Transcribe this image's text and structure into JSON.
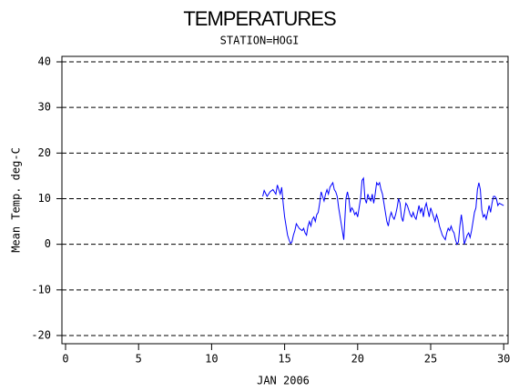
{
  "chart_data": {
    "type": "line",
    "title": "TEMPERATURES",
    "subtitle": "STATION=HOGI",
    "xlabel": "JAN 2006",
    "ylabel": "Mean Temp. deg-C",
    "xlim": [
      -0.25,
      30.3
    ],
    "xticks": [
      0,
      5,
      10,
      15,
      20,
      25,
      30
    ],
    "ylim": [
      -21.8,
      41.2
    ],
    "yticks": [
      -20,
      -10,
      0,
      10,
      20,
      30,
      40
    ],
    "grid": true,
    "color": "#0000ff",
    "x": [
      13.5,
      13.6,
      13.8,
      14.0,
      14.2,
      14.4,
      14.5,
      14.7,
      14.8,
      14.9,
      15.0,
      15.1,
      15.2,
      15.3,
      15.4,
      15.5,
      15.6,
      15.7,
      15.8,
      15.9,
      16.0,
      16.2,
      16.3,
      16.4,
      16.5,
      16.6,
      16.7,
      16.8,
      16.9,
      17.0,
      17.1,
      17.2,
      17.3,
      17.4,
      17.5,
      17.6,
      17.7,
      17.8,
      17.9,
      18.0,
      18.1,
      18.2,
      18.3,
      18.4,
      18.5,
      18.6,
      18.7,
      18.8,
      18.9,
      19.0,
      19.05,
      19.1,
      19.2,
      19.3,
      19.4,
      19.5,
      19.6,
      19.7,
      19.8,
      19.9,
      20.0,
      20.1,
      20.2,
      20.3,
      20.4,
      20.5,
      20.6,
      20.7,
      20.8,
      20.9,
      21.0,
      21.1,
      21.2,
      21.3,
      21.4,
      21.5,
      21.6,
      21.7,
      21.8,
      21.9,
      22.0,
      22.1,
      22.2,
      22.3,
      22.4,
      22.5,
      22.6,
      22.7,
      22.8,
      22.9,
      23.0,
      23.1,
      23.2,
      23.3,
      23.4,
      23.5,
      23.6,
      23.7,
      23.8,
      23.9,
      24.0,
      24.1,
      24.2,
      24.3,
      24.4,
      24.5,
      24.6,
      24.7,
      24.8,
      24.9,
      25.0,
      25.1,
      25.2,
      25.3,
      25.4,
      25.5,
      25.6,
      25.7,
      25.8,
      25.9,
      26.0,
      26.1,
      26.2,
      26.3,
      26.4,
      26.5,
      26.6,
      26.7,
      26.8,
      26.9,
      27.0,
      27.1,
      27.2,
      27.3,
      27.4,
      27.5,
      27.6,
      27.7,
      27.8,
      27.9,
      28.0,
      28.1,
      28.2,
      28.3,
      28.4,
      28.5,
      28.6,
      28.7,
      28.8,
      28.9,
      29.0,
      29.1,
      29.2,
      29.3,
      29.4,
      29.5,
      29.6,
      29.7,
      30.0
    ],
    "values": [
      10.5,
      11.8,
      10.5,
      11.5,
      12,
      11,
      13,
      11,
      12.5,
      9,
      6,
      4,
      2,
      1,
      0.2,
      0.5,
      2,
      3,
      4.5,
      4,
      3.5,
      3,
      3.5,
      2.5,
      2,
      4,
      5,
      4,
      5.5,
      6,
      5,
      6.5,
      7,
      9,
      11.5,
      10.5,
      9.5,
      11,
      12,
      11,
      12.5,
      13,
      13.5,
      12,
      11.5,
      10.5,
      8,
      6,
      4,
      2,
      1,
      4,
      10,
      11.5,
      10,
      7,
      8,
      7.5,
      6.5,
      7,
      6,
      8,
      10,
      14,
      14.5,
      10,
      9,
      11,
      10,
      9.5,
      11,
      9,
      11,
      13.5,
      13,
      13.5,
      12,
      11,
      9,
      7,
      5,
      4,
      6,
      7,
      6,
      5.5,
      6.5,
      8,
      10,
      9,
      6,
      5,
      7,
      9,
      8.5,
      7.5,
      6.5,
      6,
      7,
      6,
      5.5,
      7,
      8.5,
      7,
      8,
      6,
      8,
      9,
      7.5,
      6,
      8,
      7,
      6,
      5,
      6.5,
      5.5,
      4,
      3,
      2,
      1.5,
      1,
      2.5,
      3.5,
      3,
      4,
      3,
      2.5,
      1,
      0,
      0.5,
      4,
      6.5,
      4,
      0,
      1,
      2,
      2.5,
      1.5,
      3,
      5,
      7,
      8,
      12,
      13.5,
      12,
      7.5,
      6,
      6.5,
      5.5,
      7,
      8.5,
      7,
      9,
      10.5,
      10.5,
      10,
      8.5,
      9,
      8.5
    ]
  }
}
